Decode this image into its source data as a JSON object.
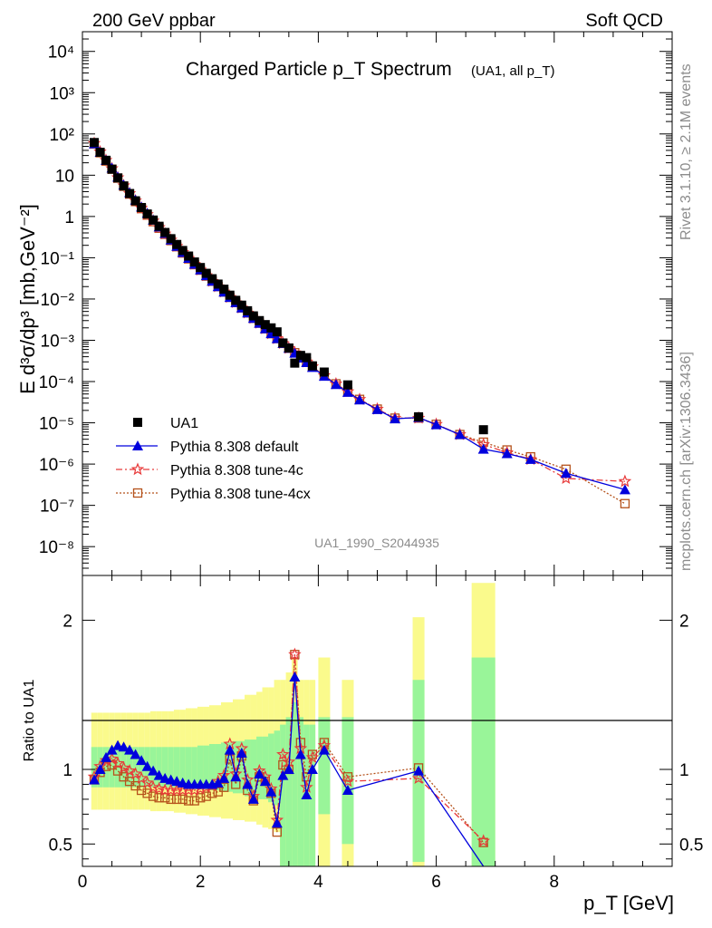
{
  "header": {
    "left": "200 GeV ppbar",
    "right": "Soft QCD"
  },
  "side_texts": {
    "rivet": "Rivet 3.1.10, ≥ 2.1M events",
    "mcplots": "mcplots.cern.ch [arXiv:1306.3436]"
  },
  "analysis_id": "UA1_1990_S2044935",
  "colors": {
    "data": "#000000",
    "default": "#0000dd",
    "tune4c": "#e83a3a",
    "tune4cx": "#b5521b",
    "band_inner": "#99f599",
    "band_outer": "#fafa8c"
  },
  "chart_data": [
    {
      "type": "scatter",
      "title": "Charged Particle p_T Spectrum",
      "title_note": "(UA1, all p_T)",
      "ylabel": "E d³σ/dp³ [mb,GeV⁻²]",
      "yscale": "log",
      "xlim": [
        0,
        10
      ],
      "ylim": [
        2e-09,
        30000.0
      ],
      "ytick_labels": [
        "10⁻⁸",
        "10⁻⁷",
        "10⁻⁶",
        "10⁻⁵",
        "10⁻⁴",
        "10⁻³",
        "10⁻²",
        "10⁻¹",
        "1",
        "10",
        "10²",
        "10³",
        "10⁴"
      ],
      "legend_position": "lower-left",
      "series": [
        {
          "name": "UA1",
          "marker": "filled-square",
          "line": "none",
          "x": [
            0.2,
            0.3,
            0.4,
            0.5,
            0.6,
            0.7,
            0.8,
            0.9,
            1.0,
            1.1,
            1.2,
            1.3,
            1.4,
            1.5,
            1.6,
            1.7,
            1.8,
            1.9,
            2.0,
            2.1,
            2.2,
            2.3,
            2.4,
            2.5,
            2.6,
            2.7,
            2.8,
            2.9,
            3.0,
            3.1,
            3.2,
            3.3,
            3.4,
            3.5,
            3.6,
            3.7,
            3.8,
            3.9,
            4.1,
            4.5,
            5.7,
            6.8
          ],
          "y": [
            62,
            36,
            23,
            14,
            8.6,
            5.5,
            3.6,
            2.4,
            1.65,
            1.15,
            0.82,
            0.58,
            0.41,
            0.29,
            0.21,
            0.15,
            0.11,
            0.079,
            0.058,
            0.042,
            0.031,
            0.023,
            0.0173,
            0.0124,
            0.0093,
            0.0071,
            0.0052,
            0.0039,
            0.003,
            0.0024,
            0.002,
            0.0016,
            0.00086,
            0.00065,
            0.00028,
            0.00043,
            0.00038,
            0.00024,
            0.00017,
            8.3e-05,
            1.4e-05,
            6.8e-06
          ]
        },
        {
          "name": "Pythia 8.308 default",
          "marker": "filled-triangle",
          "line": "solid",
          "x": [
            0.2,
            0.3,
            0.4,
            0.5,
            0.6,
            0.7,
            0.8,
            0.9,
            1.0,
            1.1,
            1.2,
            1.3,
            1.4,
            1.5,
            1.6,
            1.7,
            1.8,
            1.9,
            2.0,
            2.1,
            2.2,
            2.3,
            2.4,
            2.5,
            2.6,
            2.7,
            2.8,
            2.9,
            3.0,
            3.1,
            3.2,
            3.3,
            3.4,
            3.5,
            3.6,
            3.7,
            3.8,
            3.9,
            4.1,
            4.3,
            4.5,
            4.7,
            5.0,
            5.3,
            5.7,
            6.0,
            6.4,
            6.8,
            7.2,
            7.6,
            8.2,
            9.2
          ],
          "y": [
            58,
            36,
            23,
            15,
            9.0,
            5.8,
            3.8,
            2.5,
            1.7,
            1.2,
            0.82,
            0.56,
            0.39,
            0.27,
            0.19,
            0.135,
            0.097,
            0.07,
            0.051,
            0.037,
            0.027,
            0.02,
            0.0148,
            0.011,
            0.0082,
            0.0061,
            0.0046,
            0.0034,
            0.0026,
            0.0019,
            0.00145,
            0.0011,
            0.00084,
            0.00064,
            0.00049,
            0.00037,
            0.00029,
            0.00022,
            0.000135,
            8.5e-05,
            5.5e-05,
            3.6e-05,
            2.1e-05,
            1.25e-05,
            1.35e-05,
            9e-06,
            5.2e-06,
            2.3e-06,
            1.8e-06,
            1.3e-06,
            6e-07,
            2.4e-07
          ]
        },
        {
          "name": "Pythia 8.308 tune-4c",
          "marker": "open-star",
          "line": "dash-dot",
          "x": [
            0.2,
            0.3,
            0.4,
            0.5,
            0.6,
            0.7,
            0.8,
            0.9,
            1.0,
            1.1,
            1.2,
            1.3,
            1.4,
            1.5,
            1.6,
            1.7,
            1.8,
            1.9,
            2.0,
            2.1,
            2.2,
            2.3,
            2.4,
            2.5,
            2.6,
            2.7,
            2.8,
            2.9,
            3.0,
            3.1,
            3.2,
            3.3,
            3.4,
            3.5,
            3.6,
            3.7,
            3.8,
            3.9,
            4.1,
            4.3,
            4.5,
            4.7,
            5.0,
            5.3,
            5.7,
            6.0,
            6.4,
            6.8,
            7.2,
            7.6,
            8.2,
            9.2
          ],
          "y": [
            59,
            37,
            23,
            14.5,
            8.7,
            5.6,
            3.6,
            2.4,
            1.6,
            1.12,
            0.78,
            0.54,
            0.38,
            0.27,
            0.19,
            0.135,
            0.097,
            0.07,
            0.051,
            0.037,
            0.027,
            0.02,
            0.0148,
            0.011,
            0.0082,
            0.0061,
            0.0046,
            0.0034,
            0.0026,
            0.0019,
            0.00145,
            0.0011,
            0.00084,
            0.00064,
            0.0005,
            0.00038,
            0.0003,
            0.00023,
            0.00014,
            8.8e-05,
            5.7e-05,
            3.7e-05,
            2.15e-05,
            1.3e-05,
            1.3e-05,
            9.2e-06,
            5.2e-06,
            3e-06,
            1.9e-06,
            1.3e-06,
            4.5e-07,
            3.8e-07
          ]
        },
        {
          "name": "Pythia 8.308 tune-4cx",
          "marker": "open-square",
          "line": "dotted",
          "x": [
            0.2,
            0.3,
            0.4,
            0.5,
            0.6,
            0.7,
            0.8,
            0.9,
            1.0,
            1.1,
            1.2,
            1.3,
            1.4,
            1.5,
            1.6,
            1.7,
            1.8,
            1.9,
            2.0,
            2.1,
            2.2,
            2.3,
            2.4,
            2.5,
            2.6,
            2.7,
            2.8,
            2.9,
            3.0,
            3.1,
            3.2,
            3.3,
            3.4,
            3.5,
            3.6,
            3.7,
            3.8,
            3.9,
            4.1,
            4.3,
            4.5,
            4.7,
            5.0,
            5.3,
            5.7,
            6.0,
            6.4,
            6.8,
            7.2,
            7.6,
            8.2,
            9.2
          ],
          "y": [
            57,
            35,
            22,
            14,
            8.5,
            5.4,
            3.5,
            2.3,
            1.55,
            1.08,
            0.75,
            0.52,
            0.37,
            0.26,
            0.185,
            0.13,
            0.094,
            0.068,
            0.05,
            0.036,
            0.027,
            0.02,
            0.0148,
            0.011,
            0.0082,
            0.0061,
            0.0046,
            0.0034,
            0.0026,
            0.0019,
            0.00145,
            0.0011,
            0.00084,
            0.00064,
            0.0005,
            0.00038,
            0.0003,
            0.00023,
            0.00014,
            8.8e-05,
            5.7e-05,
            3.7e-05,
            2.15e-05,
            1.3e-05,
            1.3e-05,
            9.2e-06,
            5.2e-06,
            3.4e-06,
            2.2e-06,
            1.5e-06,
            7.5e-07,
            1.1e-07
          ]
        }
      ]
    },
    {
      "type": "line",
      "ylabel": "Ratio to UA1",
      "xlabel": "p_T [GeV]",
      "xlim": [
        0,
        10
      ],
      "ylim": [
        0.35,
        2.3
      ],
      "x_tick_labels": [
        "0",
        "2",
        "4",
        "6",
        "8"
      ],
      "y_tick_labels": [
        "0.5",
        "1",
        "2"
      ],
      "reference_line": 1,
      "bands": {
        "x": [
          0.2,
          0.3,
          0.4,
          0.5,
          0.6,
          0.7,
          0.8,
          0.9,
          1.0,
          1.1,
          1.2,
          1.3,
          1.4,
          1.5,
          1.6,
          1.7,
          1.8,
          1.9,
          2.0,
          2.1,
          2.2,
          2.3,
          2.4,
          2.5,
          2.6,
          2.7,
          2.8,
          2.9,
          3.0,
          3.1,
          3.2,
          3.3,
          3.4,
          3.5,
          3.6,
          3.7,
          3.8,
          3.9,
          4.1,
          4.5,
          5.7,
          6.8
        ],
        "half_width": [
          0.05,
          0.05,
          0.05,
          0.05,
          0.05,
          0.05,
          0.05,
          0.05,
          0.05,
          0.05,
          0.05,
          0.05,
          0.05,
          0.05,
          0.05,
          0.05,
          0.05,
          0.05,
          0.05,
          0.05,
          0.05,
          0.05,
          0.05,
          0.05,
          0.05,
          0.05,
          0.05,
          0.05,
          0.05,
          0.05,
          0.05,
          0.05,
          0.05,
          0.05,
          0.05,
          0.05,
          0.05,
          0.05,
          0.1,
          0.1,
          0.1,
          0.2
        ],
        "inner_lo": [
          0.88,
          0.88,
          0.88,
          0.88,
          0.88,
          0.88,
          0.88,
          0.88,
          0.88,
          0.88,
          0.88,
          0.88,
          0.88,
          0.88,
          0.88,
          0.88,
          0.88,
          0.88,
          0.87,
          0.87,
          0.86,
          0.86,
          0.85,
          0.85,
          0.84,
          0.84,
          0.82,
          0.82,
          0.8,
          0.8,
          0.78,
          0.76,
          0.35,
          0.35,
          0.35,
          0.35,
          0.35,
          0.35,
          0.7,
          0.5,
          0.38,
          0.35
        ],
        "inner_hi": [
          1.15,
          1.15,
          1.15,
          1.15,
          1.15,
          1.15,
          1.15,
          1.15,
          1.15,
          1.15,
          1.15,
          1.15,
          1.15,
          1.15,
          1.15,
          1.15,
          1.15,
          1.15,
          1.16,
          1.16,
          1.17,
          1.17,
          1.18,
          1.18,
          1.19,
          1.19,
          1.2,
          1.2,
          1.22,
          1.22,
          1.24,
          1.26,
          1.3,
          1.35,
          1.45,
          1.35,
          1.3,
          1.3,
          1.35,
          1.35,
          1.6,
          1.75
        ],
        "outer_lo": [
          0.73,
          0.73,
          0.73,
          0.73,
          0.73,
          0.73,
          0.73,
          0.73,
          0.73,
          0.73,
          0.72,
          0.72,
          0.72,
          0.72,
          0.71,
          0.71,
          0.7,
          0.7,
          0.69,
          0.69,
          0.68,
          0.68,
          0.67,
          0.67,
          0.66,
          0.66,
          0.65,
          0.65,
          0.63,
          0.61,
          0.6,
          0.58,
          0.35,
          0.35,
          0.35,
          0.35,
          0.35,
          0.35,
          0.35,
          0.35,
          0.35,
          0.35
        ],
        "outer_hi": [
          1.38,
          1.38,
          1.38,
          1.38,
          1.38,
          1.38,
          1.38,
          1.38,
          1.38,
          1.38,
          1.39,
          1.39,
          1.39,
          1.39,
          1.4,
          1.4,
          1.41,
          1.41,
          1.42,
          1.42,
          1.43,
          1.43,
          1.45,
          1.45,
          1.47,
          1.47,
          1.5,
          1.5,
          1.52,
          1.55,
          1.55,
          1.6,
          1.6,
          1.65,
          1.75,
          1.6,
          1.6,
          1.6,
          1.75,
          1.6,
          2.02,
          2.25
        ]
      },
      "series": [
        {
          "name": "Pythia 8.308 default",
          "x": [
            0.2,
            0.3,
            0.4,
            0.5,
            0.6,
            0.7,
            0.8,
            0.9,
            1.0,
            1.1,
            1.2,
            1.3,
            1.4,
            1.5,
            1.6,
            1.7,
            1.8,
            1.9,
            2.0,
            2.1,
            2.2,
            2.3,
            2.4,
            2.5,
            2.6,
            2.7,
            2.8,
            2.9,
            3.0,
            3.1,
            3.2,
            3.3,
            3.4,
            3.5,
            3.6,
            3.7,
            3.8,
            3.9,
            4.1,
            4.5,
            5.7,
            6.8
          ],
          "y": [
            0.93,
            1.0,
            1.08,
            1.13,
            1.16,
            1.15,
            1.13,
            1.1,
            1.06,
            1.02,
            0.99,
            0.96,
            0.94,
            0.93,
            0.92,
            0.91,
            0.9,
            0.9,
            0.9,
            0.9,
            0.9,
            0.91,
            0.94,
            1.13,
            0.95,
            1.11,
            0.9,
            0.8,
            0.97,
            0.92,
            0.85,
            0.64,
            0.96,
            1.0,
            1.62,
            1.1,
            0.83,
            1.0,
            1.13,
            0.86,
            0.99,
            0.3
          ]
        },
        {
          "name": "Pythia 8.308 tune-4c",
          "x": [
            0.2,
            0.3,
            0.4,
            0.5,
            0.6,
            0.7,
            0.8,
            0.9,
            1.0,
            1.1,
            1.2,
            1.3,
            1.4,
            1.5,
            1.6,
            1.7,
            1.8,
            1.9,
            2.0,
            2.1,
            2.2,
            2.3,
            2.4,
            2.5,
            2.6,
            2.7,
            2.8,
            2.9,
            3.0,
            3.1,
            3.2,
            3.3,
            3.4,
            3.5,
            3.6,
            3.7,
            3.8,
            3.9,
            4.1,
            4.5,
            5.7,
            6.8
          ],
          "y": [
            0.95,
            1.02,
            1.06,
            1.07,
            1.04,
            1.01,
            0.99,
            0.97,
            0.94,
            0.91,
            0.88,
            0.87,
            0.86,
            0.86,
            0.86,
            0.86,
            0.86,
            0.86,
            0.87,
            0.88,
            0.89,
            0.92,
            0.96,
            1.17,
            0.97,
            1.14,
            0.93,
            0.82,
            0.99,
            0.95,
            0.87,
            0.66,
            1.1,
            1.05,
            1.77,
            1.14,
            0.88,
            1.08,
            1.16,
            0.92,
            0.94,
            0.52
          ]
        },
        {
          "name": "Pythia 8.308 tune-4cx",
          "x": [
            0.2,
            0.3,
            0.4,
            0.5,
            0.6,
            0.7,
            0.8,
            0.9,
            1.0,
            1.1,
            1.2,
            1.3,
            1.4,
            1.5,
            1.6,
            1.7,
            1.8,
            1.9,
            2.0,
            2.1,
            2.2,
            2.3,
            2.4,
            2.5,
            2.6,
            2.7,
            2.8,
            2.9,
            3.0,
            3.1,
            3.2,
            3.3,
            3.4,
            3.5,
            3.6,
            3.7,
            3.8,
            3.9,
            4.1,
            4.5,
            5.7,
            6.8
          ],
          "y": [
            0.93,
            0.98,
            1.02,
            1.03,
            0.99,
            0.95,
            0.92,
            0.89,
            0.86,
            0.84,
            0.82,
            0.81,
            0.81,
            0.8,
            0.8,
            0.8,
            0.79,
            0.79,
            0.81,
            0.82,
            0.84,
            0.85,
            0.88,
            1.07,
            0.9,
            1.09,
            0.86,
            0.79,
            0.95,
            0.92,
            0.84,
            0.58,
            1.03,
            1.0,
            1.77,
            1.18,
            0.95,
            1.1,
            1.18,
            0.95,
            1.01,
            0.51
          ]
        }
      ]
    }
  ]
}
